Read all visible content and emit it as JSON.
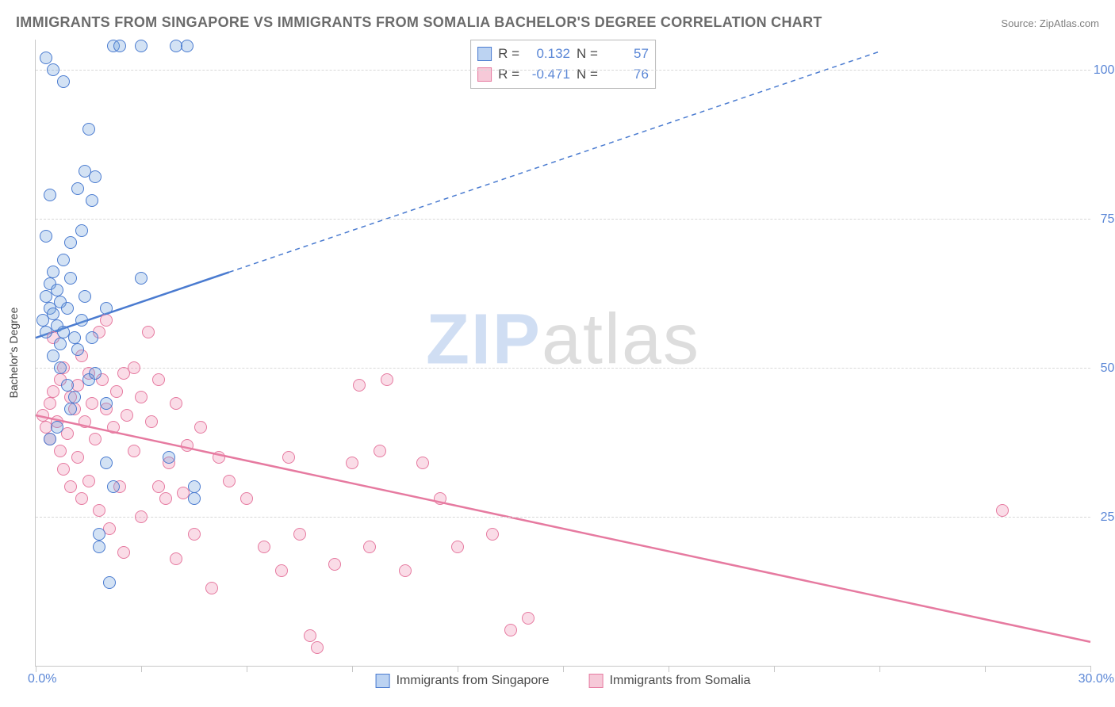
{
  "title": "IMMIGRANTS FROM SINGAPORE VS IMMIGRANTS FROM SOMALIA BACHELOR'S DEGREE CORRELATION CHART",
  "source_label": "Source:",
  "source_value": "ZipAtlas.com",
  "watermark": {
    "part1": "ZIP",
    "part2": "atlas"
  },
  "y_axis_title": "Bachelor's Degree",
  "axes": {
    "xmin": 0.0,
    "xmax": 30.0,
    "ymin": 0.0,
    "ymax": 105.0,
    "x_ticks": [
      0,
      3,
      6,
      9,
      12,
      15,
      18,
      21,
      24,
      27,
      30
    ],
    "x_tick_labels_shown": {
      "min": "0.0%",
      "max": "30.0%"
    },
    "y_gridlines": [
      25,
      50,
      75,
      100
    ],
    "y_tick_labels": [
      "25.0%",
      "50.0%",
      "75.0%",
      "100.0%"
    ]
  },
  "styling": {
    "background_color": "#ffffff",
    "grid_color": "#d8d8d8",
    "axis_color": "#c7c7c7",
    "tick_label_color": "#5b87d6",
    "title_color": "#6b6b6b",
    "title_fontsize": 18,
    "label_fontsize": 16,
    "marker_radius": 8,
    "marker_stroke_width": 1.5,
    "marker_fill_opacity": 0.28,
    "trend_line_width": 2.5,
    "trend_dash": "6,5"
  },
  "series": [
    {
      "name": "Immigrants from Singapore",
      "key": "singapore",
      "color_stroke": "#4a7bd0",
      "color_fill": "rgba(110,160,220,0.30)",
      "legend_fill": "#bcd3f2",
      "R": "0.132",
      "N": "57",
      "trend": {
        "x1": 0.0,
        "y1": 55.0,
        "x2_solid": 5.5,
        "y2_solid": 66.0,
        "x2": 24.0,
        "y2": 103.0
      },
      "points": [
        [
          0.2,
          58
        ],
        [
          0.3,
          62
        ],
        [
          0.3,
          56
        ],
        [
          0.4,
          60
        ],
        [
          0.4,
          64
        ],
        [
          0.5,
          66
        ],
        [
          0.5,
          59
        ],
        [
          0.6,
          57
        ],
        [
          0.6,
          63
        ],
        [
          0.7,
          61
        ],
        [
          0.7,
          54
        ],
        [
          0.8,
          68
        ],
        [
          0.8,
          56
        ],
        [
          0.9,
          60
        ],
        [
          1.0,
          65
        ],
        [
          1.0,
          71
        ],
        [
          1.1,
          55
        ],
        [
          1.1,
          45
        ],
        [
          1.2,
          53
        ],
        [
          1.2,
          80
        ],
        [
          1.3,
          58
        ],
        [
          1.3,
          73
        ],
        [
          1.4,
          83
        ],
        [
          1.5,
          90
        ],
        [
          1.5,
          48
        ],
        [
          1.6,
          78
        ],
        [
          1.7,
          82
        ],
        [
          1.8,
          20
        ],
        [
          1.8,
          22
        ],
        [
          2.0,
          44
        ],
        [
          2.0,
          60
        ],
        [
          2.1,
          14
        ],
        [
          2.2,
          104
        ],
        [
          2.4,
          104
        ],
        [
          0.3,
          72
        ],
        [
          0.5,
          52
        ],
        [
          0.7,
          50
        ],
        [
          0.9,
          47
        ],
        [
          1.0,
          43
        ],
        [
          1.4,
          62
        ],
        [
          1.6,
          55
        ],
        [
          1.7,
          49
        ],
        [
          2.0,
          34
        ],
        [
          2.2,
          30
        ],
        [
          3.0,
          65
        ],
        [
          3.0,
          104
        ],
        [
          3.8,
          35
        ],
        [
          4.0,
          104
        ],
        [
          4.3,
          104
        ],
        [
          4.5,
          30
        ],
        [
          4.5,
          28
        ],
        [
          0.3,
          102
        ],
        [
          0.5,
          100
        ],
        [
          0.8,
          98
        ],
        [
          0.4,
          79
        ],
        [
          0.6,
          40
        ],
        [
          0.4,
          38
        ]
      ]
    },
    {
      "name": "Immigrants from Somalia",
      "key": "somalia",
      "color_stroke": "#e67aa0",
      "color_fill": "rgba(240,140,175,0.30)",
      "legend_fill": "#f6c9d8",
      "R": "-0.471",
      "N": "76",
      "trend": {
        "x1": 0.0,
        "y1": 42.0,
        "x2_solid": 30.0,
        "y2_solid": 4.0,
        "x2": 30.0,
        "y2": 4.0
      },
      "points": [
        [
          0.2,
          42
        ],
        [
          0.3,
          40
        ],
        [
          0.4,
          44
        ],
        [
          0.4,
          38
        ],
        [
          0.5,
          46
        ],
        [
          0.5,
          55
        ],
        [
          0.6,
          41
        ],
        [
          0.7,
          48
        ],
        [
          0.7,
          36
        ],
        [
          0.8,
          50
        ],
        [
          0.8,
          33
        ],
        [
          0.9,
          39
        ],
        [
          1.0,
          45
        ],
        [
          1.0,
          30
        ],
        [
          1.1,
          43
        ],
        [
          1.2,
          47
        ],
        [
          1.2,
          35
        ],
        [
          1.3,
          52
        ],
        [
          1.3,
          28
        ],
        [
          1.4,
          41
        ],
        [
          1.5,
          49
        ],
        [
          1.5,
          31
        ],
        [
          1.6,
          44
        ],
        [
          1.7,
          38
        ],
        [
          1.8,
          56
        ],
        [
          1.8,
          26
        ],
        [
          1.9,
          48
        ],
        [
          2.0,
          43
        ],
        [
          2.0,
          58
        ],
        [
          2.1,
          23
        ],
        [
          2.2,
          40
        ],
        [
          2.3,
          46
        ],
        [
          2.4,
          30
        ],
        [
          2.5,
          49
        ],
        [
          2.5,
          19
        ],
        [
          2.6,
          42
        ],
        [
          2.8,
          36
        ],
        [
          2.8,
          50
        ],
        [
          3.0,
          45
        ],
        [
          3.0,
          25
        ],
        [
          3.2,
          56
        ],
        [
          3.3,
          41
        ],
        [
          3.5,
          48
        ],
        [
          3.5,
          30
        ],
        [
          3.7,
          28
        ],
        [
          3.8,
          34
        ],
        [
          4.0,
          44
        ],
        [
          4.0,
          18
        ],
        [
          4.2,
          29
        ],
        [
          4.3,
          37
        ],
        [
          4.5,
          22
        ],
        [
          4.7,
          40
        ],
        [
          5.0,
          13
        ],
        [
          5.2,
          35
        ],
        [
          5.5,
          31
        ],
        [
          6.0,
          28
        ],
        [
          6.5,
          20
        ],
        [
          7.0,
          16
        ],
        [
          7.2,
          35
        ],
        [
          7.5,
          22
        ],
        [
          8.0,
          3
        ],
        [
          8.5,
          17
        ],
        [
          9.0,
          34
        ],
        [
          9.2,
          47
        ],
        [
          9.5,
          20
        ],
        [
          9.8,
          36
        ],
        [
          10.0,
          48
        ],
        [
          10.5,
          16
        ],
        [
          11.0,
          34
        ],
        [
          11.5,
          28
        ],
        [
          12.0,
          20
        ],
        [
          13.0,
          22
        ],
        [
          13.5,
          6
        ],
        [
          14.0,
          8
        ],
        [
          27.5,
          26
        ],
        [
          7.8,
          5
        ]
      ]
    }
  ],
  "legend_box_labels": {
    "R": "R =",
    "N": "N ="
  },
  "bottom_legend_labels": [
    "Immigrants from Singapore",
    "Immigrants from Somalia"
  ]
}
